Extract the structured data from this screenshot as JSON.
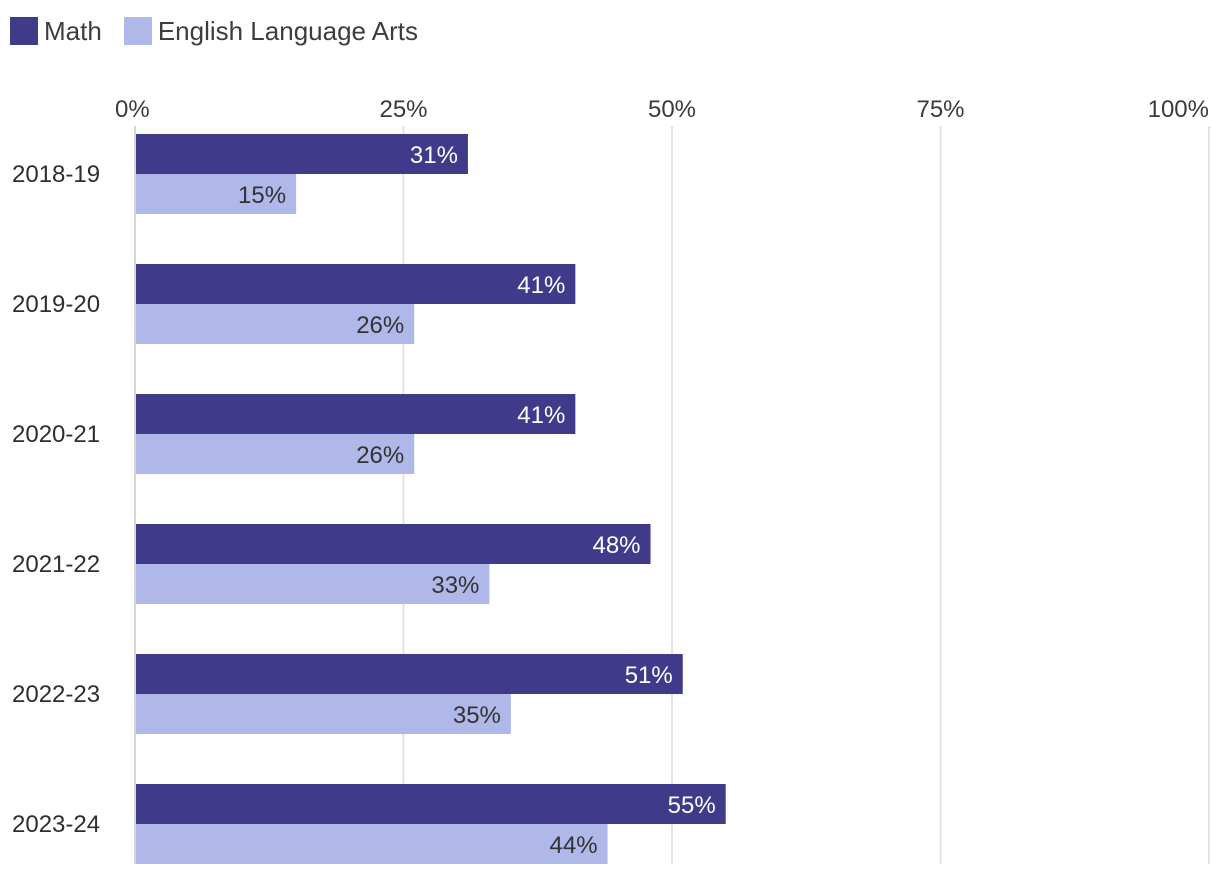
{
  "legend": [
    {
      "label": "Math",
      "color": "#403a8b"
    },
    {
      "label": "English Language Arts",
      "color": "#afb8e8"
    }
  ],
  "chart_data": {
    "type": "bar",
    "orientation": "horizontal",
    "categories": [
      "2018-19",
      "2019-20",
      "2020-21",
      "2021-22",
      "2022-23",
      "2023-24"
    ],
    "series": [
      {
        "name": "Math",
        "color": "#403a8b",
        "values": [
          31,
          41,
          41,
          48,
          51,
          55
        ]
      },
      {
        "name": "English Language Arts",
        "color": "#afb8e8",
        "values": [
          15,
          26,
          26,
          33,
          35,
          44
        ]
      }
    ],
    "value_labels": [
      [
        "31%",
        "41%",
        "41%",
        "48%",
        "51%",
        "55%"
      ],
      [
        "15%",
        "26%",
        "26%",
        "33%",
        "35%",
        "44%"
      ]
    ],
    "ticks": [
      0,
      25,
      50,
      75,
      100
    ],
    "tick_labels": [
      "0%",
      "25%",
      "50%",
      "75%",
      "100%"
    ],
    "xlim": [
      0,
      100
    ],
    "grid": true,
    "axis_position": "top",
    "legend_position": "top-left",
    "title": "",
    "xlabel": "",
    "ylabel": ""
  }
}
